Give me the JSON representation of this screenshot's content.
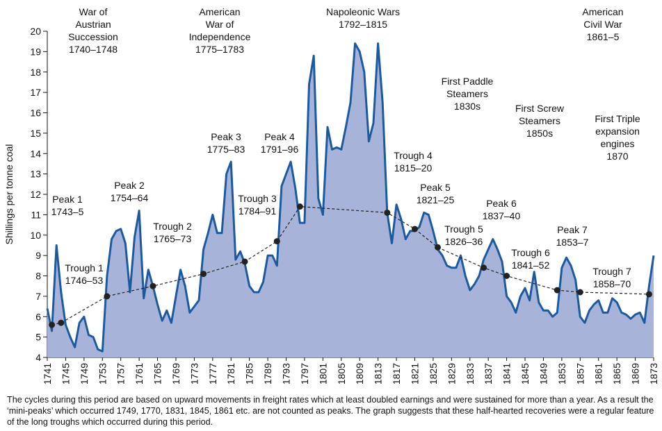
{
  "chart_data": {
    "type": "area",
    "ylabel": "Shillings per tonne coal",
    "x": [
      1741,
      1742,
      1743,
      1744,
      1745,
      1746,
      1747,
      1748,
      1749,
      1750,
      1751,
      1752,
      1753,
      1754,
      1755,
      1756,
      1757,
      1758,
      1759,
      1760,
      1761,
      1762,
      1763,
      1764,
      1765,
      1766,
      1767,
      1768,
      1769,
      1770,
      1771,
      1772,
      1773,
      1774,
      1775,
      1776,
      1777,
      1778,
      1779,
      1780,
      1781,
      1782,
      1783,
      1784,
      1785,
      1786,
      1787,
      1788,
      1789,
      1790,
      1791,
      1792,
      1793,
      1794,
      1795,
      1796,
      1797,
      1798,
      1799,
      1800,
      1801,
      1802,
      1803,
      1804,
      1805,
      1806,
      1807,
      1808,
      1809,
      1810,
      1811,
      1812,
      1813,
      1814,
      1815,
      1816,
      1817,
      1818,
      1819,
      1820,
      1821,
      1822,
      1823,
      1824,
      1825,
      1826,
      1827,
      1828,
      1829,
      1830,
      1831,
      1832,
      1833,
      1834,
      1835,
      1836,
      1837,
      1838,
      1839,
      1840,
      1841,
      1842,
      1843,
      1844,
      1845,
      1846,
      1847,
      1848,
      1849,
      1850,
      1851,
      1852,
      1853,
      1854,
      1855,
      1856,
      1857,
      1858,
      1859,
      1860,
      1861,
      1862,
      1863,
      1864,
      1865,
      1866,
      1867,
      1868,
      1869,
      1870,
      1871,
      1872,
      1873
    ],
    "series": [
      {
        "color": "#1c5aa0",
        "fill": "#a7b3d9",
        "values": [
          6.4,
          5.3,
          9.5,
          7.2,
          5.6,
          5.0,
          4.5,
          5.7,
          6.0,
          5.1,
          5.0,
          4.4,
          4.3,
          8.0,
          9.8,
          10.2,
          10.3,
          9.6,
          7.2,
          9.9,
          11.2,
          6.9,
          8.3,
          7.5,
          6.6,
          5.8,
          6.3,
          5.7,
          7.0,
          8.3,
          7.5,
          6.2,
          6.5,
          6.8,
          9.3,
          10.1,
          11.0,
          10.1,
          10.1,
          13.0,
          13.6,
          8.8,
          9.2,
          8.6,
          7.5,
          7.2,
          7.2,
          7.7,
          9.0,
          9.0,
          8.5,
          12.4,
          13.0,
          13.6,
          12.3,
          10.6,
          10.6,
          17.4,
          18.8,
          11.8,
          11.0,
          15.3,
          14.2,
          14.3,
          14.2,
          15.3,
          16.5,
          19.4,
          19.0,
          18.0,
          14.6,
          15.5,
          19.4,
          16.5,
          11.1,
          9.6,
          11.5,
          10.8,
          9.8,
          10.2,
          10.2,
          10.4,
          11.1,
          11.0,
          10.2,
          9.3,
          9.0,
          8.5,
          8.4,
          8.4,
          9.0,
          8.0,
          7.3,
          7.6,
          8.0,
          8.8,
          9.3,
          9.8,
          9.3,
          8.7,
          7.0,
          6.7,
          6.2,
          7.0,
          7.4,
          6.8,
          8.2,
          6.7,
          6.3,
          6.3,
          6.0,
          6.2,
          8.4,
          8.9,
          8.5,
          7.8,
          6.0,
          5.7,
          6.3,
          6.6,
          6.8,
          6.2,
          6.2,
          6.9,
          6.7,
          6.2,
          6.1,
          5.9,
          6.1,
          6.2,
          5.7,
          7.5,
          9.0
        ]
      }
    ],
    "trend": {
      "color": "#222222",
      "x": [
        1742,
        1744,
        1754,
        1764,
        1775,
        1784,
        1791,
        1796,
        1815,
        1821,
        1826,
        1836,
        1841,
        1852,
        1857,
        1872
      ],
      "values": [
        5.6,
        5.7,
        7.0,
        7.5,
        8.1,
        8.7,
        9.7,
        11.4,
        11.1,
        10.3,
        9.4,
        8.4,
        8.0,
        7.3,
        7.2,
        7.1
      ]
    },
    "xlim": [
      1741,
      1873
    ],
    "xticks": [
      1741,
      1745,
      1749,
      1753,
      1757,
      1761,
      1765,
      1769,
      1773,
      1777,
      1781,
      1785,
      1789,
      1793,
      1797,
      1801,
      1805,
      1809,
      1813,
      1817,
      1821,
      1825,
      1829,
      1833,
      1837,
      1841,
      1845,
      1849,
      1853,
      1857,
      1861,
      1865,
      1869,
      1873
    ],
    "ylim": [
      4,
      20
    ],
    "yticks": [
      4,
      5,
      6,
      7,
      8,
      9,
      10,
      11,
      12,
      13,
      14,
      15,
      16,
      17,
      18,
      19,
      20
    ],
    "annotations": [
      [
        "War of",
        "Austrian",
        "Succession",
        "1740–1748"
      ],
      [
        "American",
        "War of",
        "Independence",
        "1775–1783"
      ],
      [
        "Napoleonic Wars",
        "1792–1815"
      ],
      [
        "American",
        "Civil War",
        "1861–5"
      ],
      [
        "First Paddle",
        "Steamers",
        "1830s"
      ],
      [
        "First Screw",
        "Steamers",
        "1850s"
      ],
      [
        "First Triple",
        "expansion",
        "engines",
        "1870"
      ],
      [
        "Peak 1",
        "1743–5"
      ],
      [
        "Trough 1",
        "1746–53"
      ],
      [
        "Peak 2",
        "1754–64"
      ],
      [
        "Trough 2",
        "1765–73"
      ],
      [
        "Peak 3",
        "1775–83"
      ],
      [
        "Peak 4",
        "1791–96"
      ],
      [
        "Trough 3",
        "1784–91"
      ],
      [
        "Trough 4",
        "1815–20"
      ],
      [
        "Peak 5",
        "1821–25"
      ],
      [
        "Trough 5",
        "1826–36"
      ],
      [
        "Peak 6",
        "1837–40"
      ],
      [
        "Trough 6",
        "1841–52"
      ],
      [
        "Peak 7",
        "1853–7"
      ],
      [
        "Trough 7",
        "1858–70"
      ]
    ],
    "caption": "The cycles during this period are based on upward movements in freight rates which at least doubled earnings and were sustained for more than a year. As a result the ‘mini-peaks’ which occurred 1749, 1770, 1831, 1845, 1861 etc. are not counted as peaks. The graph suggests that these half-hearted recoveries were a regular feature of the long troughs which occurred during this period."
  }
}
